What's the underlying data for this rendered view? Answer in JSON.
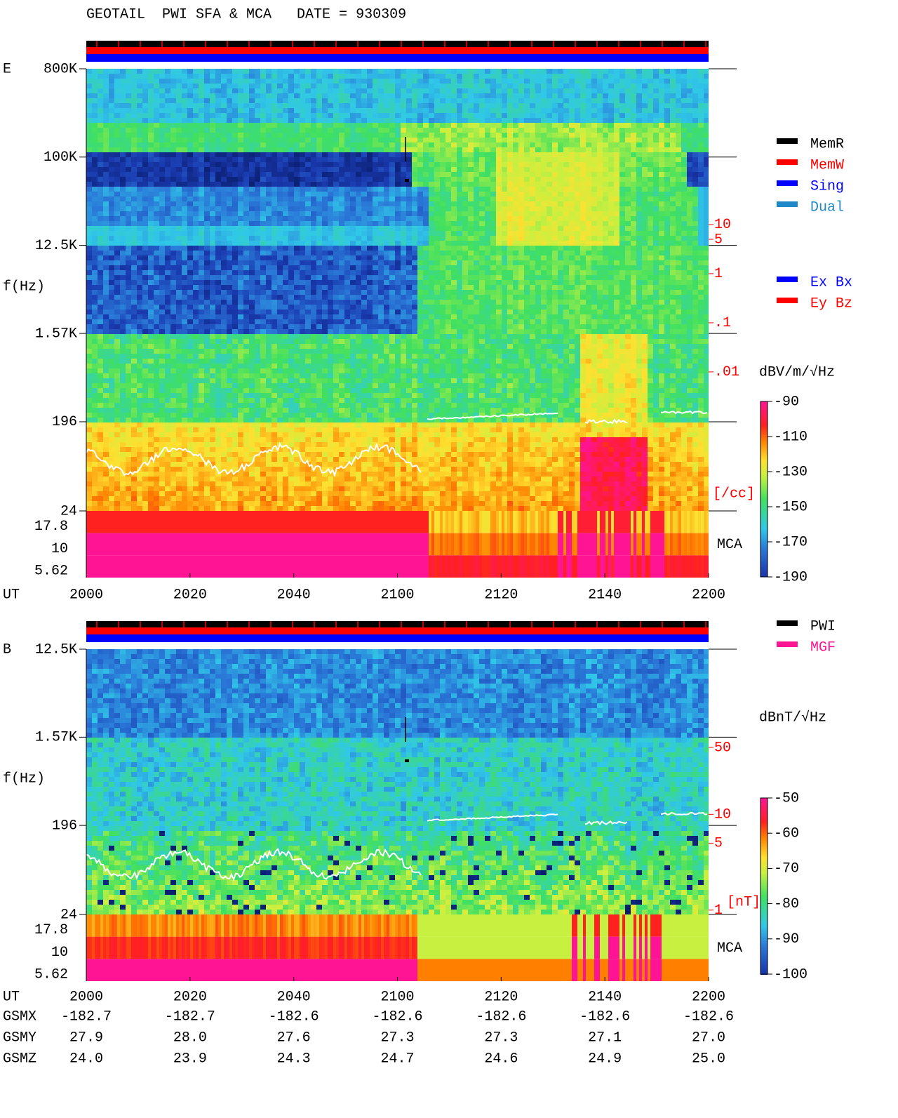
{
  "title": "GEOTAIL  PWI SFA & MCA   DATE = 930309",
  "chart_data": [
    {
      "type": "spectrogram",
      "panel_label": "E",
      "ylabel": "f(Hz)",
      "yscale": "log",
      "ylim": [
        24,
        800000
      ],
      "yticks": [
        {
          "value": 800000,
          "label": "800K"
        },
        {
          "value": 100000,
          "label": "100K"
        },
        {
          "value": 12500,
          "label": "12.5K"
        },
        {
          "value": 1570,
          "label": "1.57K"
        },
        196,
        24
      ],
      "mca_label": "MCA",
      "mca_channels": [
        17.8,
        10,
        5.62
      ],
      "xlabel": "UT",
      "categories": [
        "2000",
        "2020",
        "2040",
        "2100",
        "2120",
        "2140",
        "2200"
      ],
      "y2label": "[/cc]",
      "y2scale": "log",
      "y2lim": [
        1.48e-05,
        14800
      ],
      "y2color": "#ff0000",
      "y2ticks": [
        10,
        5,
        1,
        {
          "value": 0.1,
          "label": ".1"
        },
        {
          "value": 0.01,
          "label": ".01"
        }
      ],
      "colorbar": {
        "label": "dBV/m/√Hz",
        "lim": [
          -190,
          -90
        ],
        "ticks": [
          -90,
          -110,
          -130,
          -150,
          -170,
          -190
        ]
      },
      "legends": [
        [
          {
            "name": "MemR",
            "color": "#000000"
          },
          {
            "name": "MemW",
            "color": "#ff0000"
          },
          {
            "name": "Sing",
            "color": "#0000ff"
          },
          {
            "name": "Dual",
            "color": "#1e88c8"
          }
        ],
        [
          {
            "name": "Ex Bx",
            "color": "#0000ff"
          },
          {
            "name": "Ey Bz",
            "color": "#ff0000"
          }
        ]
      ]
    },
    {
      "type": "spectrogram",
      "panel_label": "B",
      "ylabel": "f(Hz)",
      "yscale": "log",
      "ylim": [
        24,
        12500
      ],
      "yticks": [
        {
          "value": 12500,
          "label": "12.5K"
        },
        {
          "value": 1570,
          "label": "1.57K"
        },
        196,
        24
      ],
      "mca_label": "MCA",
      "mca_channels": [
        17.8,
        10,
        5.62
      ],
      "xlabel": "UT",
      "categories": [
        "2000",
        "2020",
        "2040",
        "2100",
        "2120",
        "2140",
        "2200"
      ],
      "y2label": "[nT]",
      "y2scale": "log",
      "y2lim": [
        0.9,
        531
      ],
      "y2color": "#ff0000",
      "y2ticks": [
        50,
        10,
        5,
        1
      ],
      "colorbar": {
        "label": "dBnT/√Hz",
        "lim": [
          -100,
          -50
        ],
        "ticks": [
          -50,
          -60,
          -70,
          -80,
          -90,
          -100
        ]
      },
      "legends": [
        [
          {
            "name": "PWI",
            "color": "#000000"
          },
          {
            "name": "MGF",
            "color": "#ff1493"
          }
        ]
      ]
    }
  ],
  "orbit": {
    "rows": [
      {
        "name": "GSMX",
        "values": [
          "-182.7",
          "-182.7",
          "-182.6",
          "-182.6",
          "-182.6",
          "-182.6",
          "-182.6"
        ]
      },
      {
        "name": "GSMY",
        "values": [
          "27.9",
          "28.0",
          "27.6",
          "27.3",
          "27.3",
          "27.1",
          "27.0"
        ]
      },
      {
        "name": "GSMZ",
        "values": [
          "24.0",
          "23.9",
          "24.3",
          "24.7",
          "24.6",
          "24.9",
          "25.0"
        ]
      }
    ]
  }
}
